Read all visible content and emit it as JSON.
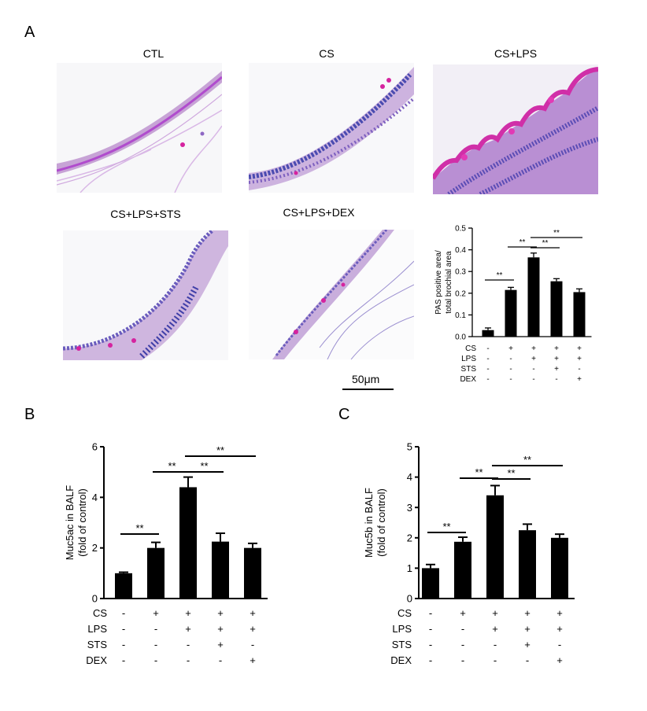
{
  "panels": {
    "A": "A",
    "B": "B",
    "C": "C"
  },
  "micrographs": [
    {
      "title": "CTL",
      "stain": "sparse"
    },
    {
      "title": "CS",
      "stain": "moderate"
    },
    {
      "title": "CS+LPS",
      "stain": "heavy"
    },
    {
      "title": "CS+LPS+STS",
      "stain": "moderate"
    },
    {
      "title": "CS+LPS+DEX",
      "stain": "light"
    }
  ],
  "scale_bar": "50μm",
  "treatment_rows": [
    {
      "label": "CS",
      "signs": [
        "-",
        "+",
        "+",
        "+",
        "+"
      ]
    },
    {
      "label": "LPS",
      "signs": [
        "-",
        "-",
        "+",
        "+",
        "+"
      ]
    },
    {
      "label": "STS",
      "signs": [
        "-",
        "-",
        "-",
        "+",
        "-"
      ]
    },
    {
      "label": "DEX",
      "signs": [
        "-",
        "-",
        "-",
        "-",
        "+"
      ]
    }
  ],
  "chart_data": [
    {
      "id": "A",
      "type": "bar",
      "categories": [
        "1",
        "2",
        "3",
        "4",
        "5"
      ],
      "values": [
        0.03,
        0.215,
        0.365,
        0.255,
        0.205
      ],
      "errors": [
        0.01,
        0.012,
        0.02,
        0.012,
        0.015
      ],
      "ylabel": "PAS positive area/ total brochial area",
      "ylim": [
        0,
        0.5
      ],
      "yticks": [
        "0.0",
        "0.1",
        "0.2",
        "0.3",
        "0.4",
        "0.5"
      ],
      "significance": [
        {
          "from": 1,
          "to": 2,
          "label": "**"
        },
        {
          "from": 2,
          "to": 3,
          "label": "**"
        },
        {
          "from": 3,
          "to": 4,
          "label": "**"
        },
        {
          "from": 3,
          "to": 5,
          "label": "**"
        }
      ]
    },
    {
      "id": "B",
      "type": "bar",
      "categories": [
        "1",
        "2",
        "3",
        "4",
        "5"
      ],
      "values": [
        1.0,
        2.0,
        4.4,
        2.25,
        2.0
      ],
      "errors": [
        0.04,
        0.22,
        0.4,
        0.33,
        0.18
      ],
      "ylabel": "Muc5ac in BALF (fold of control)",
      "ylim": [
        0,
        6
      ],
      "yticks": [
        "0",
        "2",
        "4",
        "6"
      ],
      "significance": [
        {
          "from": 1,
          "to": 2,
          "label": "**"
        },
        {
          "from": 2,
          "to": 3,
          "label": "**"
        },
        {
          "from": 3,
          "to": 4,
          "label": "**"
        },
        {
          "from": 3,
          "to": 5,
          "label": "**"
        }
      ]
    },
    {
      "id": "C",
      "type": "bar",
      "categories": [
        "1",
        "2",
        "3",
        "4",
        "5"
      ],
      "values": [
        1.0,
        1.87,
        3.4,
        2.25,
        2.0
      ],
      "errors": [
        0.12,
        0.15,
        0.32,
        0.2,
        0.12
      ],
      "ylabel": "Muc5b in BALF (fold of control)",
      "ylim": [
        0,
        5
      ],
      "yticks": [
        "0",
        "1",
        "2",
        "3",
        "4",
        "5"
      ],
      "significance": [
        {
          "from": 1,
          "to": 2,
          "label": "**"
        },
        {
          "from": 2,
          "to": 3,
          "label": "**"
        },
        {
          "from": 3,
          "to": 4,
          "label": "**"
        },
        {
          "from": 3,
          "to": 5,
          "label": "**"
        }
      ]
    }
  ]
}
